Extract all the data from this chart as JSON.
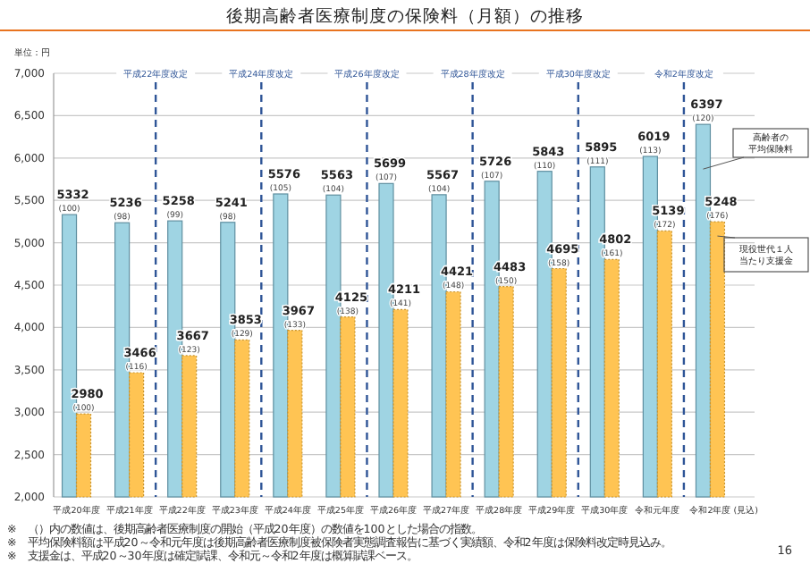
{
  "chart_data": {
    "type": "bar",
    "title": "後期高齢者医療制度の保険料（月額）の推移",
    "categories": [
      "平成20年度",
      "平成21年度",
      "平成22年度",
      "平成23年度",
      "平成24年度",
      "平成25年度",
      "平成26年度",
      "平成27年度",
      "平成28年度",
      "平成29年度",
      "平成30年度",
      "令和元年度",
      "令和2年度 (見込)"
    ],
    "series": [
      {
        "name": "高齢者の平均保険料",
        "color": "#9fd4e3",
        "values": [
          5332,
          5236,
          5258,
          5241,
          5576,
          5563,
          5699,
          5567,
          5726,
          5843,
          5895,
          6019,
          6397
        ],
        "value_labels": [
          "5332 (100)",
          "5236 (98)",
          "5258 (99)",
          "5241 (98)",
          "5576 (105)",
          "5563 (104)",
          "5699 (107)",
          "5567 (104)",
          "5726 (107)",
          "5843 (110)",
          "5895 (111)",
          "6019 (113)",
          "6397 (120)"
        ]
      },
      {
        "name": "現役世代１人当たり支援金",
        "color": "#ffc453",
        "values": [
          2980,
          3466,
          3667,
          3853,
          3967,
          4125,
          4211,
          4421,
          4483,
          4695,
          4802,
          5139,
          5248
        ],
        "value_labels": [
          "2980 (100)",
          "3466 (116)",
          "3667 (123)",
          "3853 (129)",
          "3967 (133)",
          "4125 (138)",
          "4211 (141)",
          "4421 (148)",
          "4483 (150)",
          "4695 (158)",
          "4802 (161)",
          "5139 (172)",
          "5248 (176)"
        ]
      }
    ],
    "ylim": [
      2000,
      7000
    ],
    "yticks": [
      {
        "value": 2000,
        "label": "2,000"
      },
      {
        "value": 2500,
        "label": "2,500"
      },
      {
        "value": 3000,
        "label": "3,000"
      },
      {
        "value": 3500,
        "label": "3,500"
      },
      {
        "value": 4000,
        "label": "4,000"
      },
      {
        "value": 4500,
        "label": "4,500"
      },
      {
        "value": 5000,
        "label": "5,000"
      },
      {
        "value": 5500,
        "label": "5,500"
      },
      {
        "value": 6000,
        "label": "6,000"
      },
      {
        "value": 6500,
        "label": "6,500"
      },
      {
        "value": 7000,
        "label": "7,000"
      }
    ],
    "grid": "y",
    "legend": false,
    "annotations": [
      "単位：円",
      "※　（）内の数値は、後期高齢者医療制度の開始（平成20年度）の数値を100とした場合の指数。",
      "※　平均保険料額は平成20～令和元年度は後期高齢者医療制度被保険者実態調査報告に基づく実績額、令和2年度は保険料改定時見込み。",
      "※　支援金は、平成20～30年度は確定賦課、令和元～令和2年度は概算賦課ベース。",
      "16",
      "平成22年度改定",
      "平成24年度改定",
      "平成26年度改定",
      "平成28年度改定",
      "平成30年度改定",
      "令和2年度改定"
    ]
  }
}
